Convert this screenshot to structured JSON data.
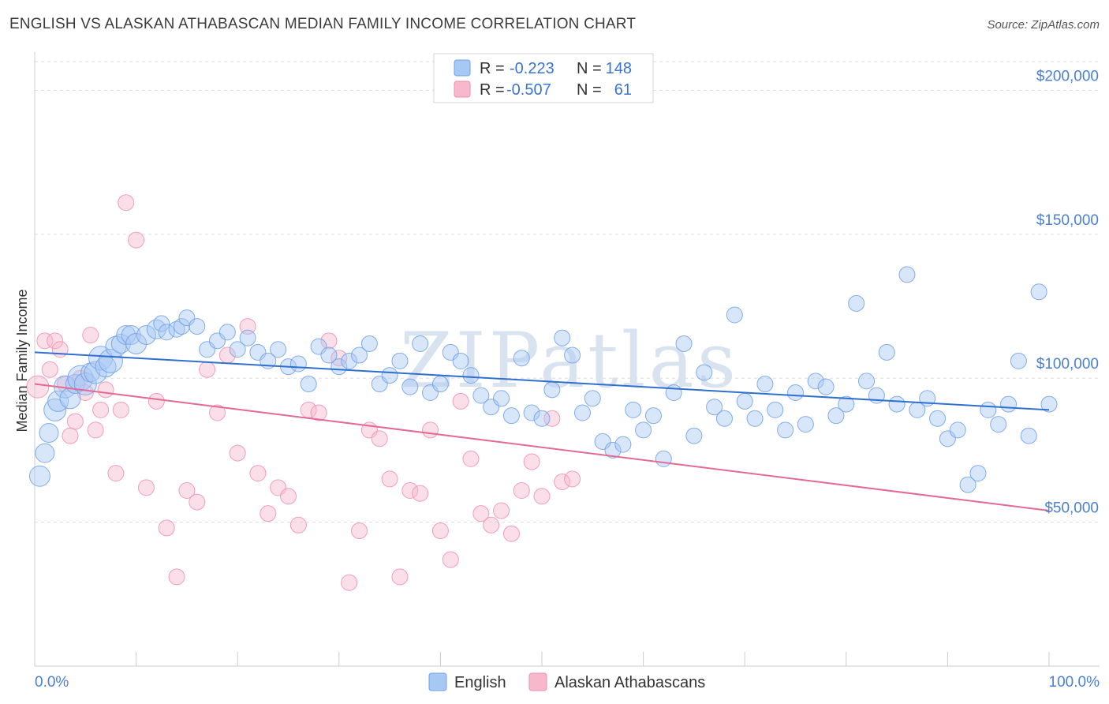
{
  "header": {
    "title": "ENGLISH VS ALASKAN ATHABASCAN MEDIAN FAMILY INCOME CORRELATION CHART",
    "source": "Source: ZipAtlas.com"
  },
  "legend_top": {
    "rows": [
      {
        "r_label": "R =",
        "r_value": "-0.223",
        "n_label": "N =",
        "n_value": "148",
        "color": "#a8c8f4"
      },
      {
        "r_label": "R =",
        "r_value": "-0.507",
        "n_label": "N =",
        "n_value": "61",
        "color": "#f7b8cb"
      }
    ]
  },
  "legend_bottom": {
    "items": [
      {
        "label": "English",
        "color": "#a8c8f4"
      },
      {
        "label": "Alaskan Athabascans",
        "color": "#f7b8cb"
      }
    ]
  },
  "chart_data": {
    "type": "scatter",
    "title": "ENGLISH VS ALASKAN ATHABASCAN MEDIAN FAMILY INCOME CORRELATION CHART",
    "xlabel": "",
    "ylabel": "Median Family Income",
    "xlim": [
      0,
      100
    ],
    "ylim": [
      0,
      210000
    ],
    "x_tick_labels": [
      "0.0%",
      "100.0%"
    ],
    "y_ticks": [
      {
        "value": 50000,
        "label": "$50,000"
      },
      {
        "value": 100000,
        "label": "$100,000"
      },
      {
        "value": 150000,
        "label": "$150,000"
      },
      {
        "value": 200000,
        "label": "$200,000"
      }
    ],
    "grid": "horizontal dashed",
    "legend_position": "top-center",
    "watermark": "ZIPatlas",
    "series": [
      {
        "name": "English",
        "color": "#6fa0e8",
        "fill": "#a8c8f4",
        "trend": {
          "x": [
            0,
            100
          ],
          "y": [
            109000,
            89000
          ],
          "color": "#2f6fd0"
        },
        "points": [
          [
            0.5,
            66000,
            13
          ],
          [
            1.0,
            74000,
            12
          ],
          [
            1.4,
            81000,
            12
          ],
          [
            2.0,
            89000,
            14
          ],
          [
            2.3,
            92000,
            13
          ],
          [
            3.0,
            97000,
            14
          ],
          [
            3.5,
            93000,
            13
          ],
          [
            4.0,
            98000,
            12
          ],
          [
            4.5,
            100000,
            16
          ],
          [
            5.0,
            98000,
            14
          ],
          [
            5.5,
            102000,
            12
          ],
          [
            6.0,
            102000,
            14
          ],
          [
            6.5,
            107000,
            15
          ],
          [
            7.0,
            104000,
            13
          ],
          [
            7.5,
            106000,
            15
          ],
          [
            8.0,
            111000,
            13
          ],
          [
            8.5,
            112000,
            12
          ],
          [
            9.0,
            115000,
            12
          ],
          [
            9.5,
            115000,
            12
          ],
          [
            10.0,
            112000,
            13
          ],
          [
            11.0,
            115000,
            12
          ],
          [
            12.0,
            117000,
            12
          ],
          [
            12.5,
            119000,
            10
          ],
          [
            13.0,
            116000,
            10
          ],
          [
            14.0,
            117000,
            10
          ],
          [
            14.5,
            118000,
            10
          ],
          [
            15.0,
            121000,
            10
          ],
          [
            16.0,
            118000,
            10
          ],
          [
            17.0,
            110000,
            10
          ],
          [
            18.0,
            113000,
            10
          ],
          [
            19.0,
            116000,
            10
          ],
          [
            20.0,
            110000,
            10
          ],
          [
            21.0,
            114000,
            10
          ],
          [
            22.0,
            109000,
            10
          ],
          [
            23.0,
            106000,
            10
          ],
          [
            24.0,
            110000,
            10
          ],
          [
            25.0,
            104000,
            10
          ],
          [
            26.0,
            105000,
            10
          ],
          [
            27.0,
            98000,
            10
          ],
          [
            28.0,
            111000,
            10
          ],
          [
            29.0,
            108000,
            10
          ],
          [
            30.0,
            104000,
            10
          ],
          [
            31.0,
            106000,
            10
          ],
          [
            32.0,
            108000,
            10
          ],
          [
            33.0,
            112000,
            10
          ],
          [
            34.0,
            98000,
            10
          ],
          [
            35.0,
            101000,
            10
          ],
          [
            36.0,
            106000,
            10
          ],
          [
            37.0,
            97000,
            10
          ],
          [
            38.0,
            112000,
            10
          ],
          [
            39.0,
            95000,
            10
          ],
          [
            40.0,
            98000,
            10
          ],
          [
            41.0,
            109000,
            10
          ],
          [
            42.0,
            106000,
            10
          ],
          [
            43.0,
            101000,
            10
          ],
          [
            44.0,
            94000,
            10
          ],
          [
            45.0,
            90000,
            10
          ],
          [
            46.0,
            93000,
            10
          ],
          [
            47.0,
            87000,
            10
          ],
          [
            48.0,
            107000,
            10
          ],
          [
            49.0,
            88000,
            10
          ],
          [
            50.0,
            86000,
            10
          ],
          [
            51.0,
            96000,
            10
          ],
          [
            52.0,
            114000,
            10
          ],
          [
            53.0,
            108000,
            10
          ],
          [
            54.0,
            88000,
            10
          ],
          [
            55.0,
            93000,
            10
          ],
          [
            56.0,
            78000,
            10
          ],
          [
            57.0,
            75000,
            10
          ],
          [
            58.0,
            77000,
            10
          ],
          [
            59.0,
            89000,
            10
          ],
          [
            60.0,
            82000,
            10
          ],
          [
            61.0,
            87000,
            10
          ],
          [
            62.0,
            72000,
            10
          ],
          [
            63.0,
            95000,
            10
          ],
          [
            64.0,
            112000,
            10
          ],
          [
            65.0,
            80000,
            10
          ],
          [
            66.0,
            102000,
            10
          ],
          [
            67.0,
            90000,
            10
          ],
          [
            68.0,
            86000,
            10
          ],
          [
            69.0,
            122000,
            10
          ],
          [
            70.0,
            92000,
            10
          ],
          [
            71.0,
            86000,
            10
          ],
          [
            72.0,
            98000,
            10
          ],
          [
            73.0,
            89000,
            10
          ],
          [
            74.0,
            82000,
            10
          ],
          [
            75.0,
            95000,
            10
          ],
          [
            76.0,
            84000,
            10
          ],
          [
            77.0,
            99000,
            10
          ],
          [
            78.0,
            97000,
            10
          ],
          [
            79.0,
            87000,
            10
          ],
          [
            80.0,
            91000,
            10
          ],
          [
            81.0,
            126000,
            10
          ],
          [
            82.0,
            99000,
            10
          ],
          [
            83.0,
            94000,
            10
          ],
          [
            84.0,
            109000,
            10
          ],
          [
            85.0,
            91000,
            10
          ],
          [
            86.0,
            136000,
            10
          ],
          [
            87.0,
            89000,
            10
          ],
          [
            88.0,
            93000,
            10
          ],
          [
            89.0,
            86000,
            10
          ],
          [
            90.0,
            79000,
            10
          ],
          [
            91.0,
            82000,
            10
          ],
          [
            92.0,
            63000,
            10
          ],
          [
            93.0,
            67000,
            10
          ],
          [
            94.0,
            89000,
            10
          ],
          [
            95.0,
            84000,
            10
          ],
          [
            96.0,
            91000,
            10
          ],
          [
            97.0,
            106000,
            10
          ],
          [
            98.0,
            80000,
            10
          ],
          [
            99.0,
            130000,
            10
          ],
          [
            100.0,
            91000,
            10
          ]
        ]
      },
      {
        "name": "Alaskan Athabascans",
        "color": "#ee8fae",
        "fill": "#f7b8cb",
        "trend": {
          "x": [
            0,
            100
          ],
          "y": [
            98000,
            54000
          ],
          "color": "#e36a93"
        },
        "points": [
          [
            0.3,
            97000,
            14
          ],
          [
            1.0,
            113000,
            10
          ],
          [
            1.5,
            103000,
            10
          ],
          [
            2.0,
            113000,
            10
          ],
          [
            2.5,
            110000,
            10
          ],
          [
            3.0,
            98000,
            10
          ],
          [
            3.5,
            80000,
            10
          ],
          [
            4.0,
            85000,
            10
          ],
          [
            4.5,
            100000,
            10
          ],
          [
            5.0,
            95000,
            10
          ],
          [
            5.5,
            115000,
            10
          ],
          [
            6.0,
            82000,
            10
          ],
          [
            6.5,
            89000,
            10
          ],
          [
            7.0,
            96000,
            10
          ],
          [
            8.0,
            67000,
            10
          ],
          [
            8.5,
            89000,
            10
          ],
          [
            9.0,
            161000,
            10
          ],
          [
            10.0,
            148000,
            10
          ],
          [
            11.0,
            62000,
            10
          ],
          [
            12.0,
            92000,
            10
          ],
          [
            13.0,
            48000,
            10
          ],
          [
            14.0,
            31000,
            10
          ],
          [
            15.0,
            61000,
            10
          ],
          [
            16.0,
            57000,
            10
          ],
          [
            17.0,
            103000,
            10
          ],
          [
            18.0,
            88000,
            10
          ],
          [
            19.0,
            108000,
            10
          ],
          [
            20.0,
            74000,
            10
          ],
          [
            21.0,
            118000,
            10
          ],
          [
            22.0,
            67000,
            10
          ],
          [
            23.0,
            53000,
            10
          ],
          [
            24.0,
            62000,
            10
          ],
          [
            25.0,
            59000,
            10
          ],
          [
            26.0,
            49000,
            10
          ],
          [
            27.0,
            89000,
            10
          ],
          [
            28.0,
            88000,
            10
          ],
          [
            29.0,
            113000,
            10
          ],
          [
            30.0,
            107000,
            10
          ],
          [
            31.0,
            29000,
            10
          ],
          [
            32.0,
            47000,
            10
          ],
          [
            33.0,
            82000,
            10
          ],
          [
            34.0,
            79000,
            10
          ],
          [
            35.0,
            65000,
            10
          ],
          [
            36.0,
            31000,
            10
          ],
          [
            37.0,
            61000,
            10
          ],
          [
            38.0,
            60000,
            10
          ],
          [
            39.0,
            82000,
            10
          ],
          [
            40.0,
            47000,
            10
          ],
          [
            41.0,
            37000,
            10
          ],
          [
            42.0,
            92000,
            10
          ],
          [
            43.0,
            72000,
            10
          ],
          [
            44.0,
            53000,
            10
          ],
          [
            45.0,
            49000,
            10
          ],
          [
            46.0,
            54000,
            10
          ],
          [
            47.0,
            46000,
            10
          ],
          [
            48.0,
            61000,
            10
          ],
          [
            49.0,
            71000,
            10
          ],
          [
            50.0,
            59000,
            10
          ],
          [
            51.0,
            86000,
            10
          ],
          [
            52.0,
            64000,
            10
          ],
          [
            53.0,
            65000,
            10
          ]
        ]
      }
    ]
  }
}
